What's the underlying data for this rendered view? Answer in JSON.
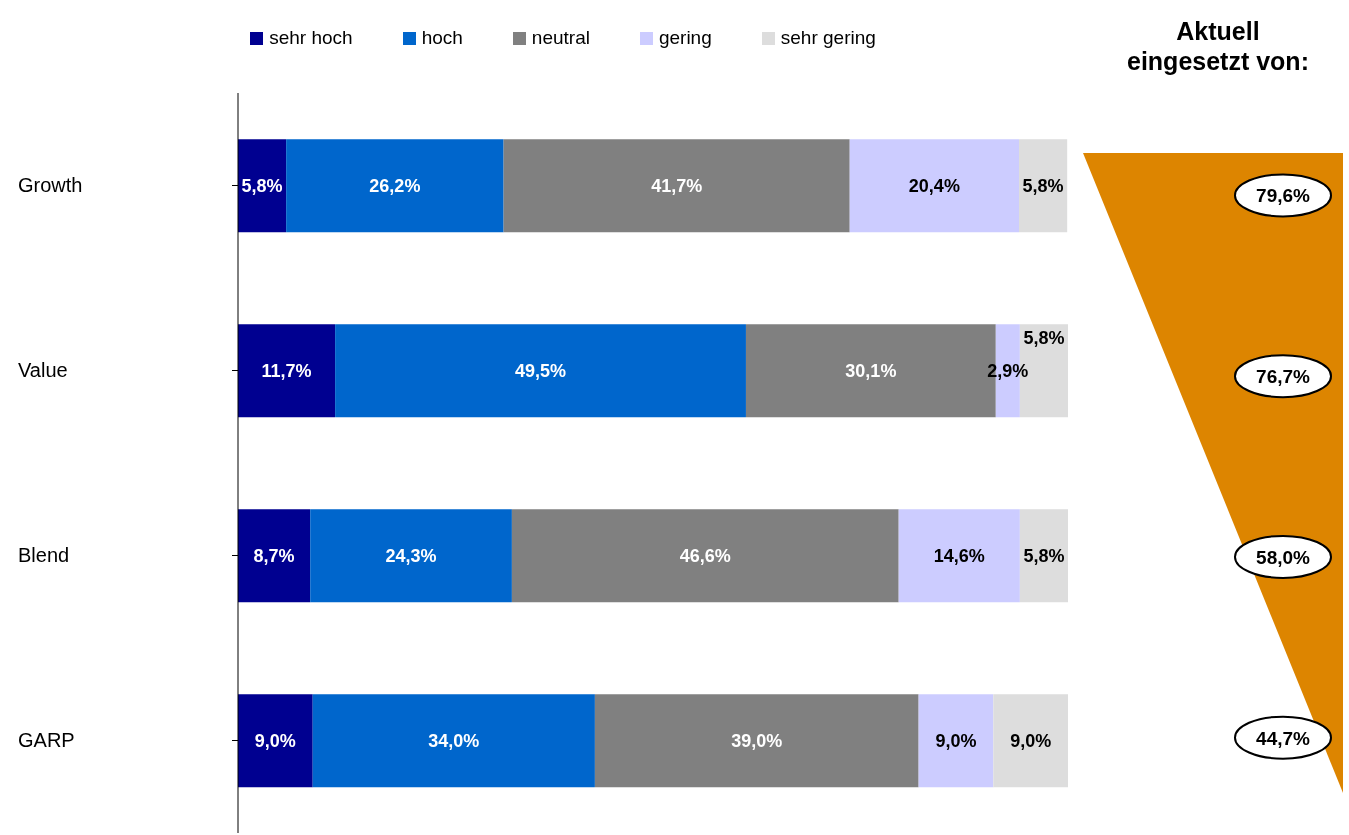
{
  "chart_data": [
    {
      "type": "bar",
      "orientation": "horizontal",
      "stacked": true,
      "categories": [
        "Growth",
        "Value",
        "Blend",
        "GARP"
      ],
      "legend": "top",
      "series": [
        {
          "name": "sehr hoch",
          "color": "#000090",
          "values": [
            5.8,
            11.7,
            8.7,
            9.0
          ],
          "value_labels": [
            "5,8%",
            "11,7%",
            "8,7%",
            "9,0%"
          ]
        },
        {
          "name": "hoch",
          "color": "#0066cc",
          "values": [
            26.2,
            49.5,
            24.3,
            34.0
          ],
          "value_labels": [
            "26,2%",
            "49,5%",
            "24,3%",
            "34,0%"
          ]
        },
        {
          "name": "neutral",
          "color": "#808080",
          "values": [
            41.7,
            30.1,
            46.6,
            39.0
          ],
          "value_labels": [
            "41,7%",
            "30,1%",
            "46,6%",
            "39,0%"
          ]
        },
        {
          "name": "gering",
          "color": "#ccccff",
          "values": [
            20.4,
            2.9,
            14.6,
            9.0
          ],
          "value_labels": [
            "20,4%",
            "2,9%",
            "14,6%",
            "9,0%"
          ]
        },
        {
          "name": "sehr gering",
          "color": "#dddddd",
          "values": [
            5.8,
            5.8,
            5.8,
            9.0
          ],
          "value_labels": [
            "5,8%",
            "5,8%",
            "5,8%",
            "9,0%"
          ]
        }
      ]
    },
    {
      "type": "other",
      "title": "Aktuell eingesetzt von:",
      "color": "#dd8500",
      "annotations": [
        "79,6%",
        "76,7%",
        "58,0%",
        "44,7%"
      ]
    }
  ]
}
